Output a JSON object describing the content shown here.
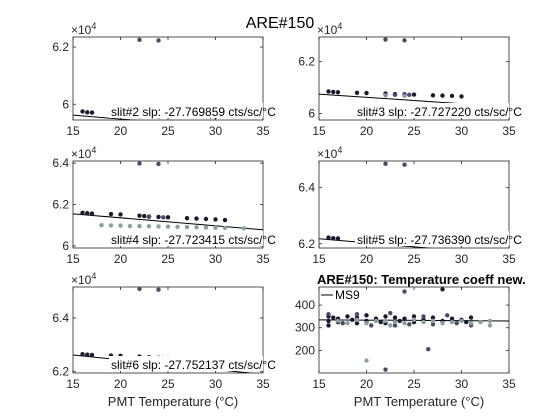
{
  "figure_title": "ARE#150",
  "chart_data": [
    {
      "type": "scatter",
      "panel": "slit2",
      "annotation": "slit#2 slp: -27.769859 cts/sc/°C",
      "xlim": [
        15,
        35
      ],
      "ylim": [
        59450,
        62350
      ],
      "xticks": [
        "15",
        "20",
        "25",
        "30",
        "35"
      ],
      "yticks": [
        {
          "v": 60000,
          "label": "6"
        },
        {
          "v": 62000,
          "label": "6.2"
        }
      ],
      "exponent": "×10",
      "exponent_power": "4",
      "xlabel": "",
      "fit": [
        [
          15,
          59620
        ],
        [
          35,
          59070
        ]
      ],
      "series": [
        {
          "color": "#1a1a2e",
          "points": [
            [
              16,
              59750
            ],
            [
              16.5,
              59720
            ],
            [
              17,
              59710
            ],
            [
              19,
              59700
            ],
            [
              19.5,
              59690
            ],
            [
              20,
              59690
            ],
            [
              22,
              59660
            ],
            [
              22.6,
              59650
            ],
            [
              23,
              59630
            ],
            [
              24,
              59630
            ],
            [
              24.5,
              59620
            ],
            [
              25,
              59610
            ],
            [
              27,
              59600
            ],
            [
              27.5,
              59600
            ],
            [
              28,
              59590
            ],
            [
              29,
              59590
            ],
            [
              29.5,
              59580
            ],
            [
              30,
              59570
            ]
          ]
        },
        {
          "color": "#4a4a6a",
          "points": [
            [
              22,
              62250
            ],
            [
              24,
              62230
            ],
            [
              23,
              59600
            ],
            [
              24.5,
              59600
            ]
          ]
        },
        {
          "color": "#8a8aaa",
          "points": [
            [
              22,
              59580
            ],
            [
              24,
              59570
            ]
          ]
        }
      ]
    },
    {
      "type": "scatter",
      "panel": "slit3",
      "annotation": "slit#3 slp: -27.727220 cts/sc/°C",
      "xlim": [
        15,
        35
      ],
      "ylim": [
        59750,
        62950
      ],
      "xticks": [
        "15",
        "20",
        "25",
        "30",
        "35"
      ],
      "yticks": [
        {
          "v": 60000,
          "label": "6"
        },
        {
          "v": 62000,
          "label": "6.2"
        }
      ],
      "exponent": "×10",
      "exponent_power": "4",
      "xlabel": "",
      "fit": [
        [
          15,
          60750
        ],
        [
          35,
          60250
        ]
      ],
      "series": [
        {
          "color": "#1a1a2e",
          "points": [
            [
              16,
              60850
            ],
            [
              16.5,
              60830
            ],
            [
              17,
              60820
            ],
            [
              19,
              60800
            ],
            [
              20,
              60790
            ],
            [
              22,
              60770
            ],
            [
              23,
              60750
            ],
            [
              24,
              60740
            ],
            [
              25,
              60730
            ],
            [
              27,
              60700
            ],
            [
              28,
              60690
            ],
            [
              29,
              60680
            ],
            [
              30,
              60660
            ]
          ]
        },
        {
          "color": "#4a4a6a",
          "points": [
            [
              22,
              62850
            ],
            [
              24,
              62820
            ],
            [
              23,
              60720
            ],
            [
              24.5,
              60720
            ]
          ]
        },
        {
          "color": "#8a8aaa",
          "points": [
            [
              22,
              60700
            ],
            [
              24,
              60690
            ]
          ]
        }
      ]
    },
    {
      "type": "scatter",
      "panel": "slit4",
      "annotation": "slit#4 slp: -27.723415 cts/sc/°C",
      "xlim": [
        15,
        35
      ],
      "ylim": [
        59900,
        64100
      ],
      "xticks": [
        "15",
        "20",
        "25",
        "30",
        "35"
      ],
      "yticks": [
        {
          "v": 60000,
          "label": "6"
        },
        {
          "v": 62000,
          "label": "6.2"
        },
        {
          "v": 64000,
          "label": "6.4"
        }
      ],
      "exponent": "×10",
      "exponent_power": "4",
      "xlabel": "",
      "fit": [
        [
          15,
          61550
        ],
        [
          35,
          60780
        ]
      ],
      "series": [
        {
          "color": "#1a1a2e",
          "points": [
            [
              16,
              61600
            ],
            [
              16.5,
              61580
            ],
            [
              17,
              61560
            ],
            [
              19,
              61540
            ],
            [
              20,
              61520
            ],
            [
              22,
              61460
            ],
            [
              22.5,
              61440
            ],
            [
              23,
              61420
            ],
            [
              24,
              61400
            ],
            [
              25,
              61380
            ],
            [
              27,
              61340
            ],
            [
              28,
              61320
            ],
            [
              29,
              61300
            ],
            [
              30,
              61280
            ],
            [
              31,
              61250
            ]
          ]
        },
        {
          "color": "#4a4a6a",
          "points": [
            [
              22,
              63980
            ],
            [
              24,
              63960
            ],
            [
              23,
              61400
            ],
            [
              24.5,
              61380
            ]
          ]
        },
        {
          "color": "#8aa0a0",
          "points": [
            [
              18,
              61000
            ],
            [
              19,
              60990
            ],
            [
              20,
              60980
            ],
            [
              21,
              60960
            ],
            [
              22,
              60960
            ],
            [
              23,
              60950
            ],
            [
              24,
              60940
            ],
            [
              25,
              60930
            ],
            [
              26,
              60920
            ],
            [
              27,
              60910
            ],
            [
              28,
              60900
            ],
            [
              29,
              60890
            ],
            [
              30,
              60880
            ],
            [
              31,
              60870
            ],
            [
              33,
              60850
            ]
          ]
        }
      ]
    },
    {
      "type": "scatter",
      "panel": "slit5",
      "annotation": "slit#5 slp: -27.736390 cts/sc/°C",
      "xlim": [
        15,
        35
      ],
      "ylim": [
        61850,
        64950
      ],
      "xticks": [
        "15",
        "20",
        "25",
        "30",
        "35"
      ],
      "yticks": [
        {
          "v": 62000,
          "label": "6.2"
        },
        {
          "v": 64000,
          "label": "6.4"
        }
      ],
      "exponent": "×10",
      "exponent_power": "4",
      "xlabel": "",
      "fit": [
        [
          15,
          62180
        ],
        [
          35,
          61600
        ]
      ],
      "series": [
        {
          "color": "#1a1a2e",
          "points": [
            [
              16,
              62220
            ],
            [
              16.5,
              62200
            ],
            [
              17,
              62190
            ],
            [
              19,
              62170
            ],
            [
              20,
              62160
            ],
            [
              22,
              62120
            ],
            [
              23,
              62100
            ],
            [
              24,
              62080
            ],
            [
              25,
              62070
            ],
            [
              27,
              62040
            ],
            [
              28,
              62030
            ],
            [
              29,
              62020
            ],
            [
              30,
              62000
            ]
          ]
        },
        {
          "color": "#4a4a6a",
          "points": [
            [
              22,
              64850
            ],
            [
              24,
              64820
            ],
            [
              23,
              62080
            ],
            [
              24.5,
              62070
            ]
          ]
        },
        {
          "color": "#8a8aaa",
          "points": [
            [
              22,
              62060
            ],
            [
              24,
              62050
            ]
          ]
        }
      ]
    },
    {
      "type": "scatter",
      "panel": "slit6",
      "annotation": "slit#6 slp: -27.752137 cts/sc/°C",
      "xlim": [
        15,
        35
      ],
      "ylim": [
        61950,
        65150
      ],
      "xticks": [
        "15",
        "20",
        "25",
        "30",
        "35"
      ],
      "yticks": [
        {
          "v": 62000,
          "label": "6.2"
        },
        {
          "v": 64000,
          "label": "6.4"
        }
      ],
      "exponent": "×10",
      "exponent_power": "4",
      "xlabel": "PMT Temperature (°C)",
      "fit": [
        [
          15,
          62620
        ],
        [
          35,
          61900
        ]
      ],
      "series": [
        {
          "color": "#1a1a2e",
          "points": [
            [
              16,
              62650
            ],
            [
              16.5,
              62630
            ],
            [
              17,
              62620
            ],
            [
              19,
              62600
            ],
            [
              20,
              62590
            ],
            [
              22,
              62560
            ],
            [
              23,
              62540
            ],
            [
              24,
              62520
            ],
            [
              25,
              62510
            ],
            [
              27,
              62480
            ],
            [
              28,
              62470
            ],
            [
              29,
              62460
            ],
            [
              30,
              62440
            ]
          ]
        },
        {
          "color": "#4a4a6a",
          "points": [
            [
              22,
              65080
            ],
            [
              24,
              65050
            ],
            [
              23,
              62520
            ],
            [
              24.5,
              62510
            ]
          ]
        },
        {
          "color": "#8a8aaa",
          "points": [
            [
              22,
              62500
            ],
            [
              24,
              62490
            ]
          ]
        }
      ]
    },
    {
      "type": "scatter",
      "panel": "coeff",
      "title": "ARE#150: Temperature coeff new.",
      "annotation": "MS9",
      "xlim": [
        15,
        35
      ],
      "ylim": [
        100,
        480
      ],
      "xticks": [
        "15",
        "20",
        "25",
        "30",
        "35"
      ],
      "yticks": [
        {
          "v": 200,
          "label": "200"
        },
        {
          "v": 300,
          "label": "300"
        },
        {
          "v": 400,
          "label": "400"
        }
      ],
      "exponent": "",
      "exponent_power": "",
      "xlabel": "PMT Temperature (°C)",
      "fit": [
        [
          15,
          335
        ],
        [
          35,
          330
        ]
      ],
      "series": [
        {
          "color": "#1a1a2e",
          "points": [
            [
              16,
              350
            ],
            [
              16,
              330
            ],
            [
              16,
              310
            ],
            [
              16.5,
              345
            ],
            [
              17,
              340
            ],
            [
              17,
              325
            ],
            [
              18,
              350
            ],
            [
              18.5,
              335
            ],
            [
              19,
              345
            ],
            [
              19,
              320
            ],
            [
              20,
              355
            ],
            [
              20,
              330
            ],
            [
              21,
              340
            ],
            [
              21.5,
              325
            ],
            [
              22,
              350
            ],
            [
              22,
              320
            ],
            [
              23,
              345
            ],
            [
              23.5,
              330
            ],
            [
              24,
              340
            ],
            [
              25,
              350
            ],
            [
              25,
              325
            ],
            [
              26,
              335
            ],
            [
              27,
              345
            ],
            [
              28,
              330
            ],
            [
              28,
              470
            ],
            [
              29,
              340
            ],
            [
              30,
              335
            ],
            [
              30.5,
              325
            ],
            [
              31,
              345
            ]
          ]
        },
        {
          "color": "#4a4a6a",
          "points": [
            [
              16,
              360
            ],
            [
              17.5,
              320
            ],
            [
              19,
              360
            ],
            [
              20.5,
              310
            ],
            [
              22,
              115
            ],
            [
              22.5,
              365
            ],
            [
              23,
              310
            ],
            [
              24,
              460
            ],
            [
              24.5,
              315
            ],
            [
              26,
              350
            ],
            [
              26.5,
              205
            ],
            [
              27,
              315
            ],
            [
              28.5,
              355
            ],
            [
              29.5,
              320
            ],
            [
              31,
              310
            ]
          ]
        },
        {
          "color": "#8aa0a0",
          "points": [
            [
              17,
              330
            ],
            [
              18,
              320
            ],
            [
              19,
              335
            ],
            [
              20,
              155
            ],
            [
              20,
              320
            ],
            [
              21,
              330
            ],
            [
              22,
              330
            ],
            [
              22.5,
              310
            ],
            [
              23,
              325
            ],
            [
              24,
              320
            ],
            [
              25,
              335
            ],
            [
              26,
              325
            ],
            [
              27,
              330
            ],
            [
              28,
              320
            ],
            [
              29,
              325
            ],
            [
              30,
              330
            ],
            [
              31,
              320
            ],
            [
              32,
              325
            ],
            [
              33,
              330
            ],
            [
              33,
              310
            ]
          ]
        }
      ]
    }
  ]
}
